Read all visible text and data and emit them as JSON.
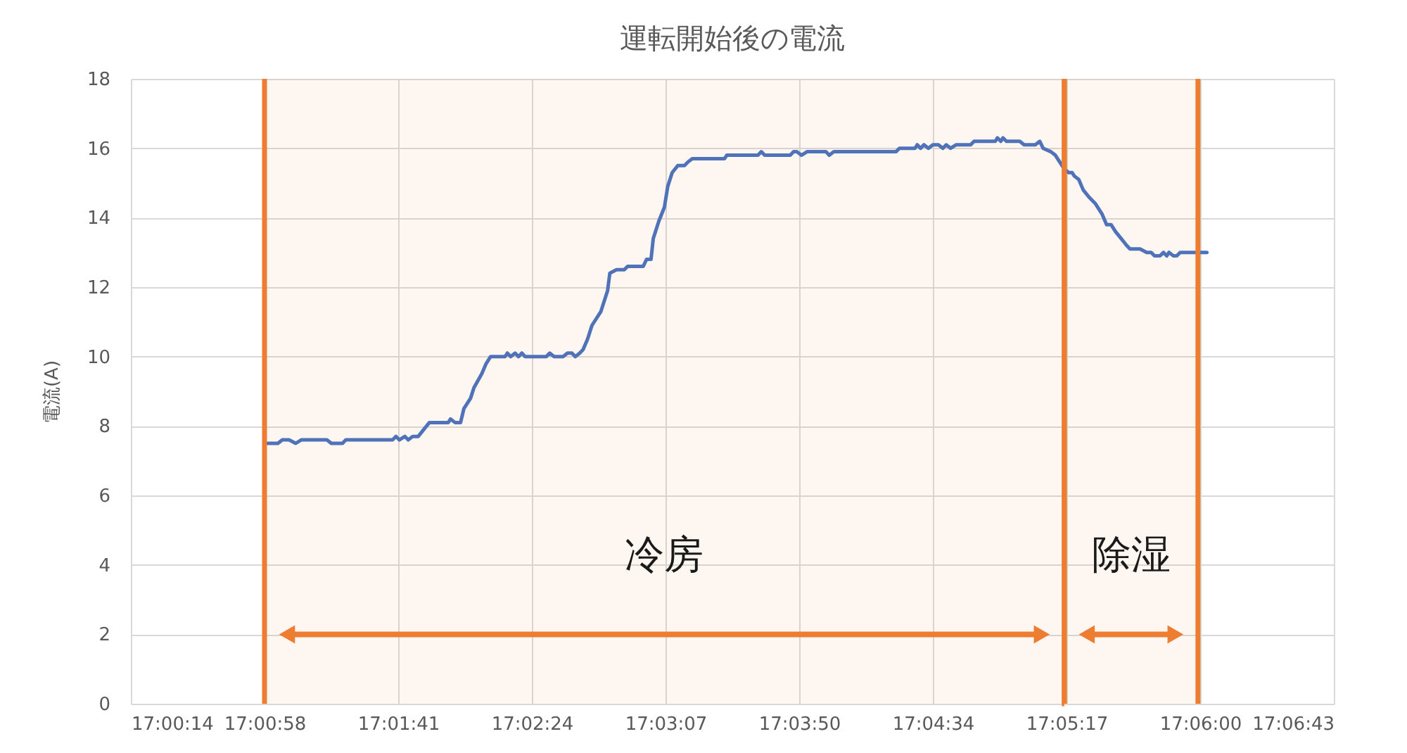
{
  "chart_data": {
    "type": "line",
    "title": "運転開始後の電流",
    "ylabel": "電流(A)",
    "color": "#4472c4",
    "line_style": "solid",
    "grid": true,
    "xlim": [
      17.004,
      17.112
    ],
    "xticks": [
      {
        "value": 17.004,
        "label": "17:00:14"
      },
      {
        "value": 17.016,
        "label": "17:00:58"
      },
      {
        "value": 17.028,
        "label": "17:01:41"
      },
      {
        "value": 17.04,
        "label": "17:02:24"
      },
      {
        "value": 17.052,
        "label": "17:03:07"
      },
      {
        "value": 17.064,
        "label": "17:03:50"
      },
      {
        "value": 17.076,
        "label": "17:04:34"
      },
      {
        "value": 17.088,
        "label": "17:05:17"
      },
      {
        "value": 17.1,
        "label": "17:06:00"
      },
      {
        "value": 17.112,
        "label": "17:06:43"
      }
    ],
    "ylim": [
      0,
      18
    ],
    "yticks": [
      0,
      2,
      4,
      6,
      8,
      10,
      12,
      14,
      16,
      18
    ],
    "x": [
      17.0162,
      17.0172,
      17.0176,
      17.0182,
      17.0188,
      17.0193,
      17.0216,
      17.022,
      17.023,
      17.0233,
      17.0275,
      17.0278,
      17.0281,
      17.0286,
      17.0289,
      17.0293,
      17.0298,
      17.0308,
      17.0325,
      17.0327,
      17.0331,
      17.0336,
      17.0339,
      17.0345,
      17.0348,
      17.0355,
      17.0359,
      17.0363,
      17.0376,
      17.0378,
      17.0381,
      17.0385,
      17.0388,
      17.0391,
      17.0394,
      17.0413,
      17.0416,
      17.042,
      17.0428,
      17.0432,
      17.0436,
      17.0439,
      17.0443,
      17.0446,
      17.045,
      17.0454,
      17.0462,
      17.0468,
      17.047,
      17.0476,
      17.0483,
      17.0486,
      17.05,
      17.0503,
      17.0507,
      17.0509,
      17.0514,
      17.0519,
      17.0522,
      17.0526,
      17.0531,
      17.0537,
      17.054,
      17.0544,
      17.0573,
      17.0575,
      17.0603,
      17.0606,
      17.0609,
      17.0632,
      17.0635,
      17.0638,
      17.0642,
      17.0647,
      17.0664,
      17.0667,
      17.0671,
      17.0727,
      17.073,
      17.0744,
      17.0746,
      17.0749,
      17.0752,
      17.0756,
      17.076,
      17.0765,
      17.0769,
      17.0772,
      17.0776,
      17.0781,
      17.0794,
      17.0797,
      17.0816,
      17.0818,
      17.0821,
      17.0823,
      17.0826,
      17.0838,
      17.0842,
      17.0852,
      17.0856,
      17.0859,
      17.0866,
      17.087,
      17.0874,
      17.0878,
      17.0882,
      17.0885,
      17.0887,
      17.0891,
      17.0895,
      17.09,
      17.0906,
      17.0912,
      17.0916,
      17.092,
      17.0924,
      17.0929,
      17.0934,
      17.0937,
      17.0946,
      17.0952,
      17.0956,
      17.0959,
      17.0964,
      17.0967,
      17.097,
      17.0972,
      17.0976,
      17.0979,
      17.0982,
      17.1006
    ],
    "values": [
      7.5,
      7.5,
      7.6,
      7.6,
      7.5,
      7.6,
      7.6,
      7.5,
      7.5,
      7.6,
      7.6,
      7.7,
      7.6,
      7.7,
      7.6,
      7.7,
      7.7,
      8.1,
      8.1,
      8.2,
      8.1,
      8.1,
      8.5,
      8.8,
      9.1,
      9.5,
      9.8,
      10.0,
      10.0,
      10.1,
      10.0,
      10.1,
      10.0,
      10.1,
      10.0,
      10.0,
      10.1,
      10.0,
      10.0,
      10.1,
      10.1,
      10.0,
      10.1,
      10.2,
      10.5,
      10.9,
      11.3,
      11.9,
      12.4,
      12.5,
      12.5,
      12.6,
      12.6,
      12.8,
      12.8,
      13.4,
      13.9,
      14.3,
      14.9,
      15.3,
      15.5,
      15.5,
      15.6,
      15.7,
      15.7,
      15.8,
      15.8,
      15.9,
      15.8,
      15.8,
      15.9,
      15.9,
      15.8,
      15.9,
      15.9,
      15.8,
      15.9,
      15.9,
      16.0,
      16.0,
      16.1,
      16.0,
      16.1,
      16.0,
      16.1,
      16.1,
      16.0,
      16.1,
      16.0,
      16.1,
      16.1,
      16.2,
      16.2,
      16.3,
      16.2,
      16.3,
      16.2,
      16.2,
      16.1,
      16.1,
      16.2,
      16.0,
      15.9,
      15.8,
      15.6,
      15.4,
      15.3,
      15.3,
      15.2,
      15.1,
      14.8,
      14.6,
      14.4,
      14.1,
      13.8,
      13.8,
      13.6,
      13.4,
      13.2,
      13.1,
      13.1,
      13.0,
      13.0,
      12.9,
      12.9,
      13.0,
      12.9,
      13.0,
      12.9,
      12.9,
      13.0,
      13.0
    ],
    "bands": [
      {
        "axis": "x",
        "from": 17.016,
        "to": 17.0878,
        "label": "冷房",
        "color": "#ed7d31"
      },
      {
        "axis": "x",
        "from": 17.0878,
        "to": 17.0998,
        "label": "除湿",
        "color": "#ed7d31"
      }
    ]
  }
}
